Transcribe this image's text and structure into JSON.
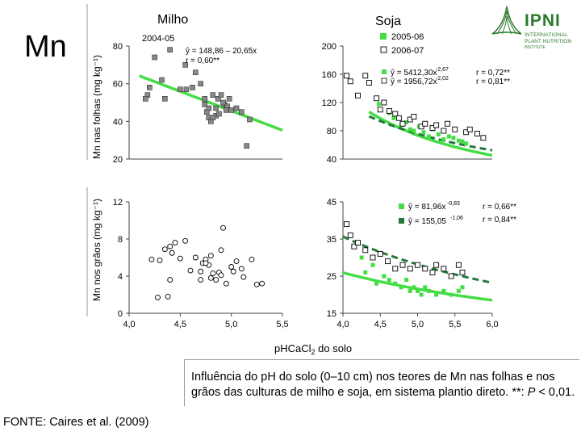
{
  "header": {
    "element": "Mn"
  },
  "figure": {
    "x_axis_title": "pH",
    "x_axis_title_sub": "CaCl",
    "x_axis_title_sub2": "2",
    "x_axis_title_tail": " do solo",
    "col_titles": [
      "Milho",
      "Soja"
    ],
    "row_titles": [
      "Mn nas folhas (mg kg⁻¹)",
      "Mn nos grãos (mg kg⁻¹)"
    ]
  },
  "caption": {
    "text_part1": "Influência do pH do solo (0–10 cm) nos teores de Mn nas folhas e nos grãos das culturas de milho e soja, em sistema plantio direto. **: ",
    "text_italic": "P",
    "text_part2": " < 0,01."
  },
  "source": "FONTE: Caires et al. (2009)",
  "logo": {
    "line1": "IPNI",
    "line2": "INTERNATIONAL",
    "line3": "PLANT NUTRITION",
    "line4": "INSTITUTE"
  },
  "colors": {
    "light_green": "#44dd44",
    "dark_green": "#227a3a",
    "marker_gray": "#888888"
  },
  "chart_data": [
    {
      "type": "scatter",
      "title": "Milho",
      "panel": "leaves",
      "ylabel": "Mn nas folhas (mg kg⁻¹)",
      "xlim": [
        4.0,
        5.5
      ],
      "ylim": [
        20,
        80
      ],
      "yticks": [
        20,
        40,
        60,
        80
      ],
      "ytick_labels": [
        "20",
        "40",
        "60",
        "80"
      ],
      "legend_entry": "2004-05",
      "annotation_equation": "ŷ = 148,86 – 20,65x",
      "annotation_r": "r = 0,60**",
      "fit": {
        "a": 148.86,
        "b": -20.65,
        "x_from": 4.1,
        "x_to": 5.5,
        "color": "#44dd44",
        "style": "solid"
      },
      "series": [
        {
          "name": "2004-05",
          "marker": "square-filled",
          "color": "#888888",
          "x": [
            4.25,
            4.32,
            4.4,
            4.18,
            4.16,
            4.2,
            4.35,
            4.55,
            4.5,
            4.56,
            4.62,
            4.65,
            4.7,
            4.74,
            4.82,
            4.87,
            4.9,
            4.93,
            4.96,
            4.98,
            5.0,
            4.76,
            4.78,
            4.8,
            4.85,
            4.88,
            4.92,
            4.85,
            4.95,
            4.74,
            4.78,
            4.82,
            5.05,
            5.1,
            5.18,
            5.15
          ],
          "y": [
            74,
            62,
            78,
            54,
            52,
            58,
            52,
            70,
            57,
            57,
            58,
            66,
            60,
            52,
            54,
            52,
            54,
            49,
            48,
            52,
            46,
            45,
            42,
            40,
            43,
            44,
            50,
            47,
            46,
            49,
            47,
            42,
            47,
            45,
            41,
            27
          ]
        }
      ]
    },
    {
      "type": "scatter",
      "title": "Soja",
      "panel": "leaves",
      "xlim": [
        4.0,
        6.0
      ],
      "ylim": [
        40,
        200
      ],
      "yticks": [
        40,
        80,
        120,
        160,
        200
      ],
      "ytick_labels": [
        "40",
        "80",
        "120",
        "160",
        "200"
      ],
      "annotation_eq_light": "ŷ = 5412,30x",
      "annotation_exp_light": "-2,67",
      "annotation_r_light": "r = 0,72**",
      "annotation_eq_dark": "ŷ = 1956,72x",
      "annotation_exp_dark": "-2,02",
      "annotation_r_dark": "r = 0,81**",
      "fits": [
        {
          "a": 5412.3,
          "b": -2.67,
          "x_from": 4.35,
          "x_to": 6.0,
          "color": "#44dd44",
          "style": "solid"
        },
        {
          "a": 1956.72,
          "b": -2.02,
          "x_from": 4.35,
          "x_to": 6.0,
          "color": "#227a3a",
          "style": "dashed"
        }
      ],
      "series": [
        {
          "name": "2005-06",
          "marker": "square-filled",
          "color": "#44dd44",
          "x": [
            4.48,
            4.62,
            4.68,
            4.78,
            4.85,
            4.9,
            4.95,
            5.02,
            5.08,
            5.15,
            5.2,
            5.28,
            5.35,
            5.42,
            5.48,
            5.55,
            5.6,
            5.65
          ],
          "y": [
            118,
            105,
            98,
            88,
            92,
            82,
            80,
            86,
            78,
            72,
            82,
            75,
            68,
            72,
            70,
            66,
            65,
            62
          ]
        },
        {
          "name": "2006-07",
          "marker": "square-open",
          "color": "#000000",
          "x": [
            4.05,
            4.1,
            4.2,
            4.3,
            4.35,
            4.45,
            4.5,
            4.55,
            4.62,
            4.7,
            4.75,
            4.8,
            4.9,
            4.95,
            5.05,
            5.1,
            5.2,
            5.25,
            5.35,
            5.4,
            5.5,
            5.65,
            5.7,
            5.8,
            5.88
          ],
          "y": [
            158,
            150,
            130,
            158,
            148,
            126,
            110,
            120,
            108,
            104,
            98,
            90,
            96,
            100,
            86,
            90,
            84,
            88,
            80,
            90,
            82,
            78,
            82,
            76,
            70
          ]
        }
      ]
    },
    {
      "type": "scatter",
      "title": "Milho",
      "panel": "grains",
      "ylabel": "Mn nos grãos (mg kg⁻¹)",
      "xlim": [
        4.0,
        5.5
      ],
      "ylim": [
        0,
        12
      ],
      "xticks": [
        4.0,
        4.5,
        5.0,
        5.5
      ],
      "xtick_labels": [
        "4,0",
        "4,5",
        "5,0",
        "5,5"
      ],
      "yticks": [
        0,
        4,
        8,
        12
      ],
      "ytick_labels": [
        "0",
        "4",
        "8",
        "12"
      ],
      "series": [
        {
          "name": "2004-05",
          "marker": "circle-open",
          "color": "#000000",
          "x": [
            4.22,
            4.3,
            4.35,
            4.4,
            4.42,
            4.45,
            4.5,
            4.55,
            4.28,
            4.38,
            4.4,
            4.6,
            4.65,
            4.7,
            4.72,
            4.75,
            4.78,
            4.8,
            4.82,
            4.85,
            4.88,
            4.9,
            4.92,
            4.95,
            5.0,
            5.02,
            5.05,
            5.1,
            5.12,
            5.2,
            5.25,
            5.3,
            4.9,
            4.7,
            4.75,
            4.8
          ],
          "y": [
            5.8,
            5.7,
            6.9,
            7.2,
            6.5,
            7.6,
            5.9,
            7.8,
            1.7,
            1.8,
            3.6,
            4.6,
            6.0,
            4.5,
            5.4,
            5.8,
            5.2,
            3.8,
            4.3,
            3.6,
            4.4,
            4.1,
            9.2,
            3.2,
            5.0,
            4.5,
            5.6,
            4.8,
            3.9,
            5.8,
            3.1,
            3.2,
            6.8,
            3.6,
            5.4,
            6.2
          ]
        }
      ]
    },
    {
      "type": "scatter",
      "title": "Soja",
      "panel": "grains",
      "xlim": [
        4.0,
        6.0
      ],
      "ylim": [
        15,
        45
      ],
      "xticks": [
        4.0,
        4.5,
        5.0,
        5.5,
        6.0
      ],
      "xtick_labels": [
        "4,0",
        "4,5",
        "5,0",
        "5,5",
        "6,0"
      ],
      "yticks": [
        15,
        25,
        35,
        45
      ],
      "ytick_labels": [
        "15",
        "25",
        "35",
        "45"
      ],
      "annotation_eq_light": "ŷ = 81,96x",
      "annotation_exp_light": "-0,83",
      "annotation_r_light": "r = 0,66**",
      "annotation_eq_dark": "ŷ = 155,05",
      "annotation_exp_dark": "-1,06",
      "annotation_r_dark": "r = 0,84**",
      "fits": [
        {
          "a": 81.96,
          "b": -0.83,
          "x_from": 4.0,
          "x_to": 6.0,
          "color": "#44dd44",
          "style": "solid"
        },
        {
          "a": 155.05,
          "b": -1.06,
          "x_from": 4.0,
          "x_to": 6.0,
          "color": "#227a3a",
          "style": "dashed"
        }
      ],
      "series": [
        {
          "name": "2005-06",
          "marker": "square-filled",
          "color": "#44dd44",
          "x": [
            4.25,
            4.3,
            4.4,
            4.45,
            4.55,
            4.62,
            4.7,
            4.78,
            4.85,
            4.9,
            4.95,
            5.0,
            5.05,
            5.1,
            5.15,
            5.25,
            5.35,
            5.45,
            5.55,
            5.6
          ],
          "y": [
            30,
            26,
            28,
            23,
            25,
            24,
            23,
            22,
            24,
            21,
            22,
            21,
            20,
            22,
            21,
            20,
            21,
            20,
            21,
            22
          ]
        },
        {
          "name": "2006-07",
          "marker": "square-open",
          "color": "#000000",
          "x": [
            4.05,
            4.1,
            4.15,
            4.2,
            4.3,
            4.4,
            4.5,
            4.6,
            4.7,
            4.8,
            4.9,
            5.0,
            5.1,
            5.2,
            5.25,
            5.35,
            5.45,
            5.55,
            5.6
          ],
          "y": [
            39,
            36,
            33,
            34,
            32,
            30,
            31,
            29,
            27,
            28,
            27,
            28,
            27,
            26,
            28,
            27,
            25,
            28,
            26
          ]
        }
      ]
    }
  ]
}
